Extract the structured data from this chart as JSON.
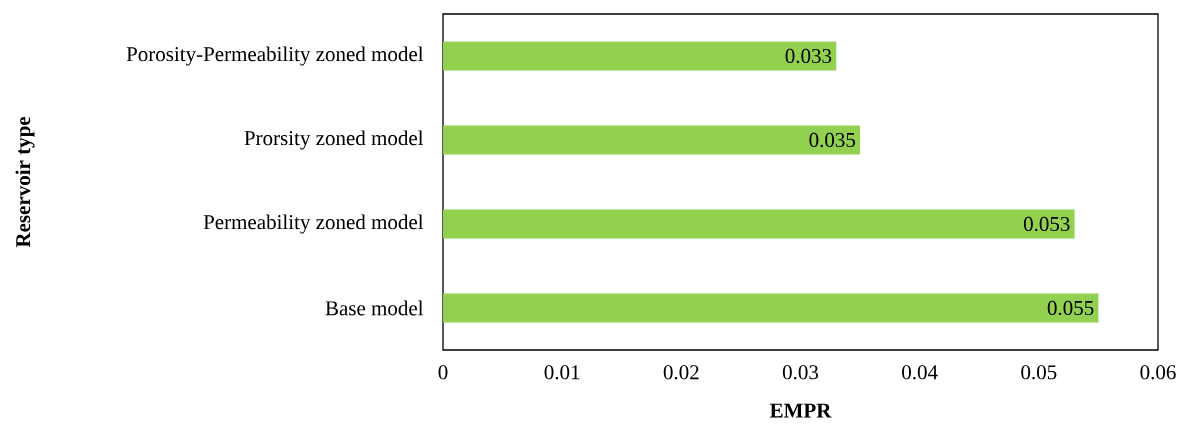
{
  "chart_data": {
    "type": "bar",
    "orientation": "horizontal",
    "xlabel": "EMPR",
    "ylabel": "Reservoir type",
    "categories": [
      "Porosity-Permeability zoned model",
      "Prorsity zoned model",
      "Permeability zoned model",
      "Base model"
    ],
    "values": [
      0.033,
      0.035,
      0.053,
      0.055
    ],
    "color": "#92d050",
    "data_labels": true,
    "xlim": [
      0,
      0.06
    ],
    "xticks": [
      0,
      0.01,
      0.02,
      0.03,
      0.04,
      0.05,
      0.06
    ],
    "grid": false
  }
}
